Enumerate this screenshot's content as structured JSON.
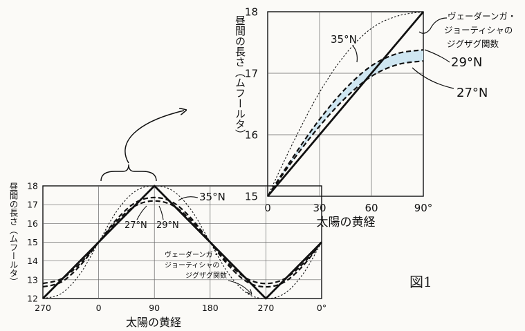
{
  "figure_label": "図1",
  "chart_data": [
    {
      "type": "line",
      "title": "",
      "xlabel": "太陽の黄経",
      "ylabel": "昼間の長さ（ムフールタ）",
      "x_ticks": [
        "0",
        "30",
        "60",
        "90°"
      ],
      "y_ticks": [
        "15",
        "16",
        "17",
        "18"
      ],
      "xlim": [
        0,
        90
      ],
      "ylim": [
        15,
        18
      ],
      "grid": true,
      "series": [
        {
          "name": "ヴェーダーンガ・ジョーティシャのジグザグ関数",
          "style": "solid-bold",
          "x": [
            0,
            90
          ],
          "y": [
            15,
            18
          ]
        },
        {
          "name": "35°N",
          "style": "dotted",
          "x": [
            0,
            15,
            30,
            45,
            60,
            75,
            90
          ],
          "y": [
            15,
            15.89,
            16.69,
            17.31,
            17.73,
            17.93,
            18.0
          ]
        },
        {
          "name": "29°N",
          "style": "dashed",
          "x": [
            0,
            15,
            30,
            45,
            60,
            75,
            90
          ],
          "y": [
            15,
            15.65,
            16.25,
            16.75,
            17.12,
            17.32,
            17.38
          ]
        },
        {
          "name": "27°N",
          "style": "dashed",
          "x": [
            0,
            15,
            30,
            45,
            60,
            75,
            90
          ],
          "y": [
            15,
            15.6,
            16.14,
            16.6,
            16.95,
            17.14,
            17.2
          ]
        }
      ],
      "annotations": [
        "35°N",
        "ヴェーダーンガ・",
        "ジョーティシャの",
        "ジグザグ関数",
        "29°N",
        "27°N"
      ]
    },
    {
      "type": "line",
      "title": "",
      "xlabel": "太陽の黄経",
      "ylabel": "昼間の長さ（ムフールタ）",
      "x_ticks": [
        "270",
        "0",
        "90",
        "180",
        "270",
        "0°"
      ],
      "y_ticks": [
        "12",
        "13",
        "14",
        "15",
        "16",
        "17",
        "18"
      ],
      "xlim": [
        -90,
        360
      ],
      "ylim": [
        12,
        18
      ],
      "grid": true,
      "series": [
        {
          "name": "ヴェーダーンガ・ジョーティシャのジグザグ関数",
          "style": "solid-bold",
          "x": [
            -90,
            90,
            270,
            360
          ],
          "y": [
            12,
            18,
            12,
            15
          ]
        },
        {
          "name": "35°N",
          "style": "dotted",
          "x": [
            -90,
            -60,
            -30,
            0,
            30,
            60,
            90,
            120,
            150,
            180,
            210,
            240,
            270,
            300,
            330,
            360
          ],
          "y": [
            12,
            12.27,
            13.31,
            15,
            16.69,
            17.73,
            18,
            17.73,
            16.69,
            15,
            13.31,
            12.27,
            12,
            12.27,
            13.31,
            15
          ]
        },
        {
          "name": "29°N",
          "style": "dashed",
          "x": [
            -90,
            -60,
            -30,
            0,
            30,
            60,
            90,
            120,
            150,
            180,
            210,
            240,
            270,
            300,
            330,
            360
          ],
          "y": [
            12.62,
            12.88,
            13.75,
            15,
            16.25,
            17.12,
            17.38,
            17.12,
            16.25,
            15,
            13.75,
            12.88,
            12.62,
            12.88,
            13.75,
            15
          ]
        },
        {
          "name": "27°N",
          "style": "dashed",
          "x": [
            -90,
            -60,
            -30,
            0,
            30,
            60,
            90,
            120,
            150,
            180,
            210,
            240,
            270,
            300,
            330,
            360
          ],
          "y": [
            12.8,
            13.05,
            13.86,
            15,
            16.14,
            16.95,
            17.2,
            16.95,
            16.14,
            15,
            13.86,
            13.05,
            12.8,
            13.05,
            13.86,
            15
          ]
        }
      ],
      "annotations": [
        "35°N",
        "27°N",
        "29°N",
        "ヴェーダーンガ・",
        "ジョーティシャの",
        "ジグザグ関数"
      ]
    }
  ]
}
